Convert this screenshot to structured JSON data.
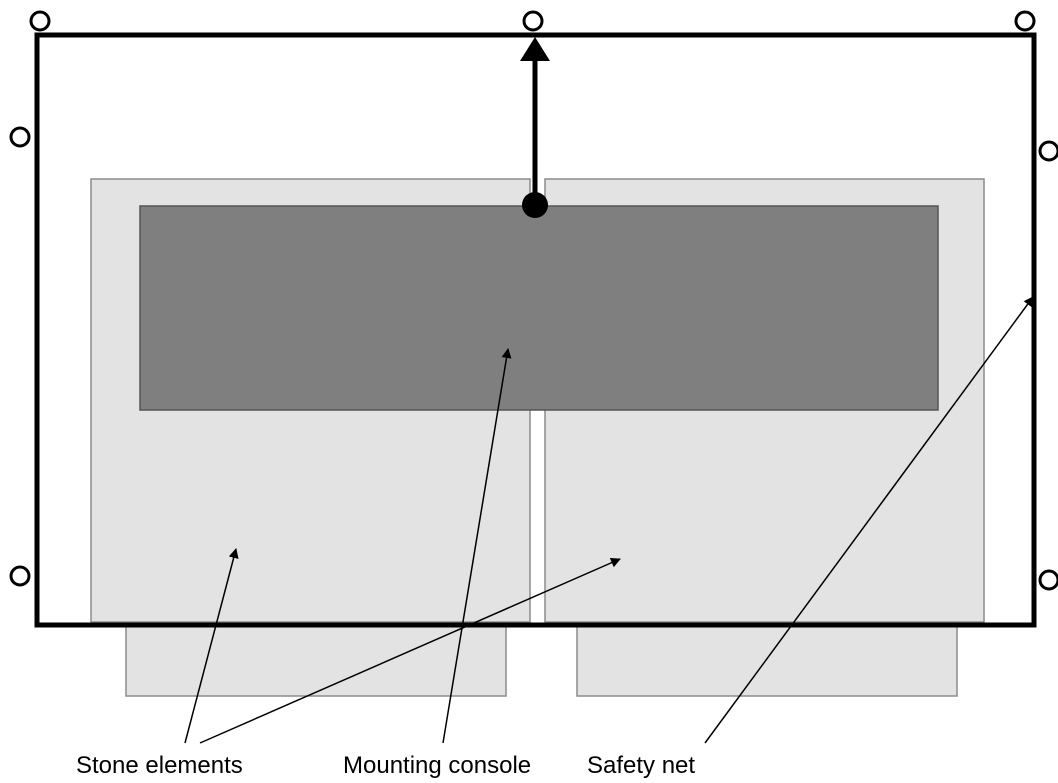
{
  "labels": {
    "stone_elements": "Stone elements",
    "mounting_console": "Mounting console",
    "safety_net": "Safety net"
  },
  "colors": {
    "stone_fill": "#e3e3e3",
    "stone_stroke": "#8c8c8c",
    "console_fill": "#7f7f7f",
    "console_stroke": "#555555",
    "frame_stroke": "#000000",
    "background": "#ffffff"
  }
}
